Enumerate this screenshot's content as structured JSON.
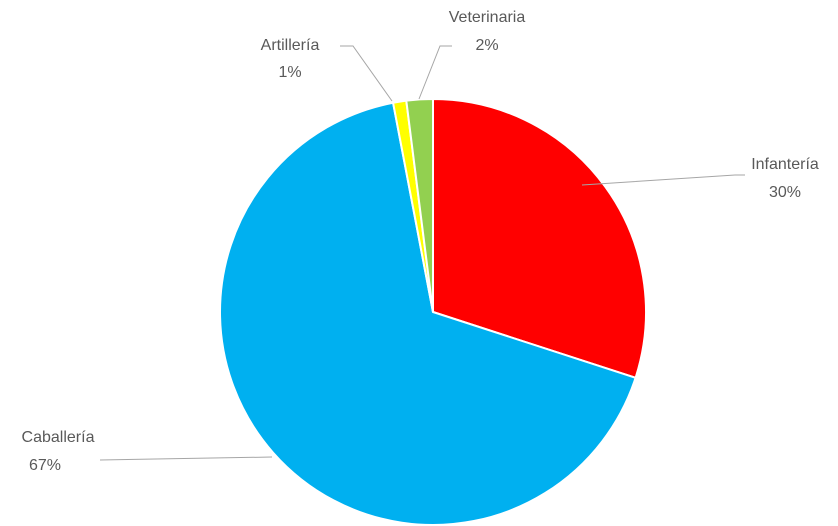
{
  "chart_data": {
    "type": "pie",
    "categories": [
      "Infantería",
      "Caballería",
      "Artillería",
      "Veterinaria"
    ],
    "values": [
      30,
      67,
      1,
      2
    ],
    "value_labels": [
      "30%",
      "67%",
      "1%",
      "2%"
    ],
    "colors": [
      "#ff0000",
      "#00b0f0",
      "#ffff00",
      "#92d050"
    ]
  }
}
